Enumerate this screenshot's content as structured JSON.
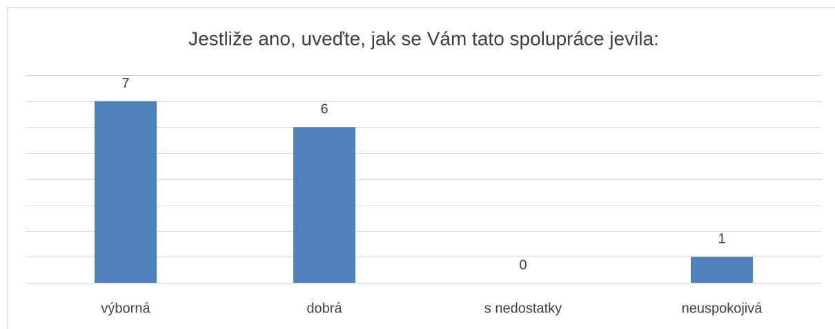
{
  "chart_data": {
    "type": "bar",
    "title": "Jestliže ano, uveďte, jak se Vám tato spolupráce jevila:",
    "categories": [
      "výborná",
      "dobrá",
      "s nedostatky",
      "neuspokojivá"
    ],
    "values": [
      7,
      6,
      0,
      1
    ],
    "color": "#4f81bd",
    "ylim": [
      0,
      8
    ],
    "yticks": [
      0,
      1,
      2,
      3,
      4,
      5,
      6,
      7,
      8
    ],
    "grid": true
  }
}
